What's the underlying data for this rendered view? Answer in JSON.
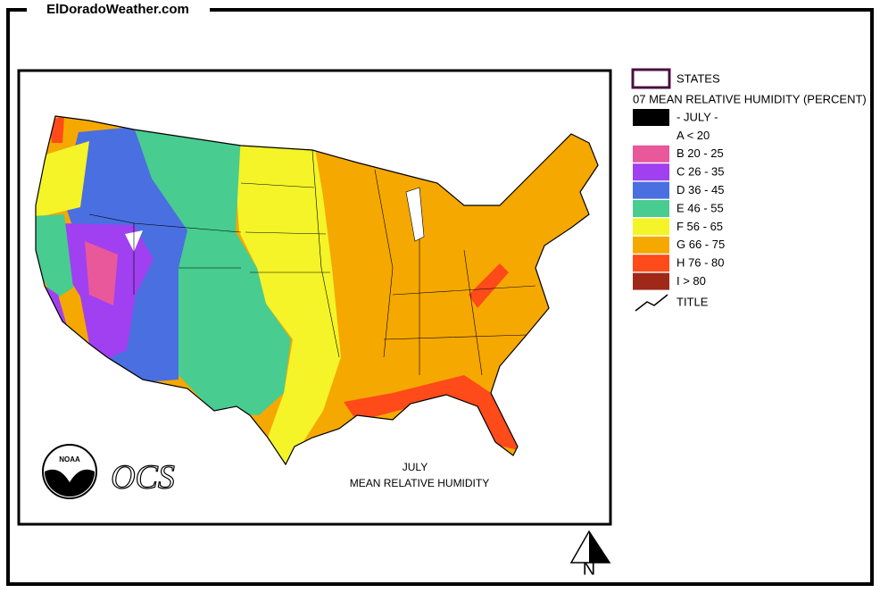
{
  "header": {
    "site": "ElDoradoWeather.com"
  },
  "map": {
    "title_line1": "JULY",
    "title_line2": "MEAN  RELATIVE HUMIDITY",
    "logo1": "NOAA",
    "logo2": "OCS",
    "north": "N"
  },
  "legend": {
    "states": "STATES",
    "heading": "07 MEAN RELATIVE HUMIDITY (PERCENT)",
    "items": [
      {
        "label": "- JULY -",
        "color": "#000000"
      },
      {
        "label": "A < 20",
        "color": "#ffffff"
      },
      {
        "label": "B 20 - 25",
        "color": "#e8589a"
      },
      {
        "label": "C 26 - 35",
        "color": "#a040f0"
      },
      {
        "label": "D 36 - 45",
        "color": "#4a6fe0"
      },
      {
        "label": "E 46 - 55",
        "color": "#48cc90"
      },
      {
        "label": "F 56 - 65",
        "color": "#f4f428"
      },
      {
        "label": "G 66 - 75",
        "color": "#f5a800"
      },
      {
        "label": "H 76 - 80",
        "color": "#ff4a1a"
      },
      {
        "label": "I > 80",
        "color": "#a02818"
      }
    ],
    "title_entry": "TITLE"
  }
}
